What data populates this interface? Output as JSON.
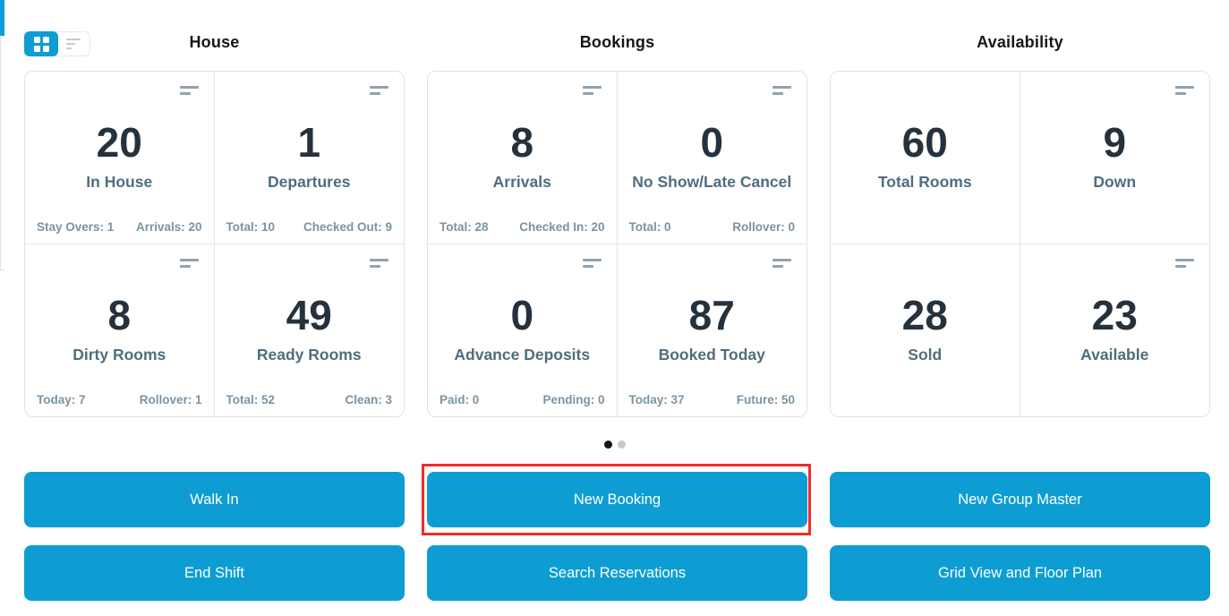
{
  "toolbar": {
    "view_toggle": {
      "active": "grid",
      "options": [
        "grid-view-icon",
        "list-view-icon"
      ]
    },
    "accent_color": "#0d9dd3"
  },
  "sections": [
    {
      "title": "House",
      "cards": [
        {
          "value": "20",
          "label": "In House",
          "footer_left": "Stay Overs: 1",
          "footer_right": "Arrivals: 20"
        },
        {
          "value": "1",
          "label": "Departures",
          "footer_left": "Total: 10",
          "footer_right": "Checked Out: 9"
        },
        {
          "value": "8",
          "label": "Dirty Rooms",
          "footer_left": "Today: 7",
          "footer_right": "Rollover: 1"
        },
        {
          "value": "49",
          "label": "Ready Rooms",
          "footer_left": "Total: 52",
          "footer_right": "Clean: 3"
        }
      ]
    },
    {
      "title": "Bookings",
      "cards": [
        {
          "value": "8",
          "label": "Arrivals",
          "footer_left": "Total: 28",
          "footer_right": "Checked In: 20"
        },
        {
          "value": "0",
          "label": "No Show/Late Cancel",
          "footer_left": "Total: 0",
          "footer_right": "Rollover: 0"
        },
        {
          "value": "0",
          "label": "Advance Deposits",
          "footer_left": "Paid: 0",
          "footer_right": "Pending: 0"
        },
        {
          "value": "87",
          "label": "Booked Today",
          "footer_left": "Today: 37",
          "footer_right": "Future: 50"
        }
      ]
    },
    {
      "title": "Availability",
      "cards": [
        {
          "value": "60",
          "label": "Total Rooms"
        },
        {
          "value": "9",
          "label": "Down"
        },
        {
          "value": "28",
          "label": "Sold"
        },
        {
          "value": "23",
          "label": "Available"
        }
      ]
    }
  ],
  "carousel": {
    "dot_count": 2,
    "active_index": 0
  },
  "buttons": {
    "walk_in": "Walk In",
    "new_booking": "New Booking",
    "new_group_master": "New Group Master",
    "end_shift": "End Shift",
    "search_reservations": "Search Reservations",
    "grid_view_floor_plan": "Grid View and Floor Plan"
  },
  "annotation": {
    "highlighted_button": "New Booking",
    "color": "#f22b2b"
  },
  "colors": {
    "button_bg": "#0d9dd3",
    "stat_number": "#25323d",
    "stat_label": "#4f6e7d",
    "stat_footer": "#7c93a1",
    "card_border": "#dfe3e7"
  }
}
